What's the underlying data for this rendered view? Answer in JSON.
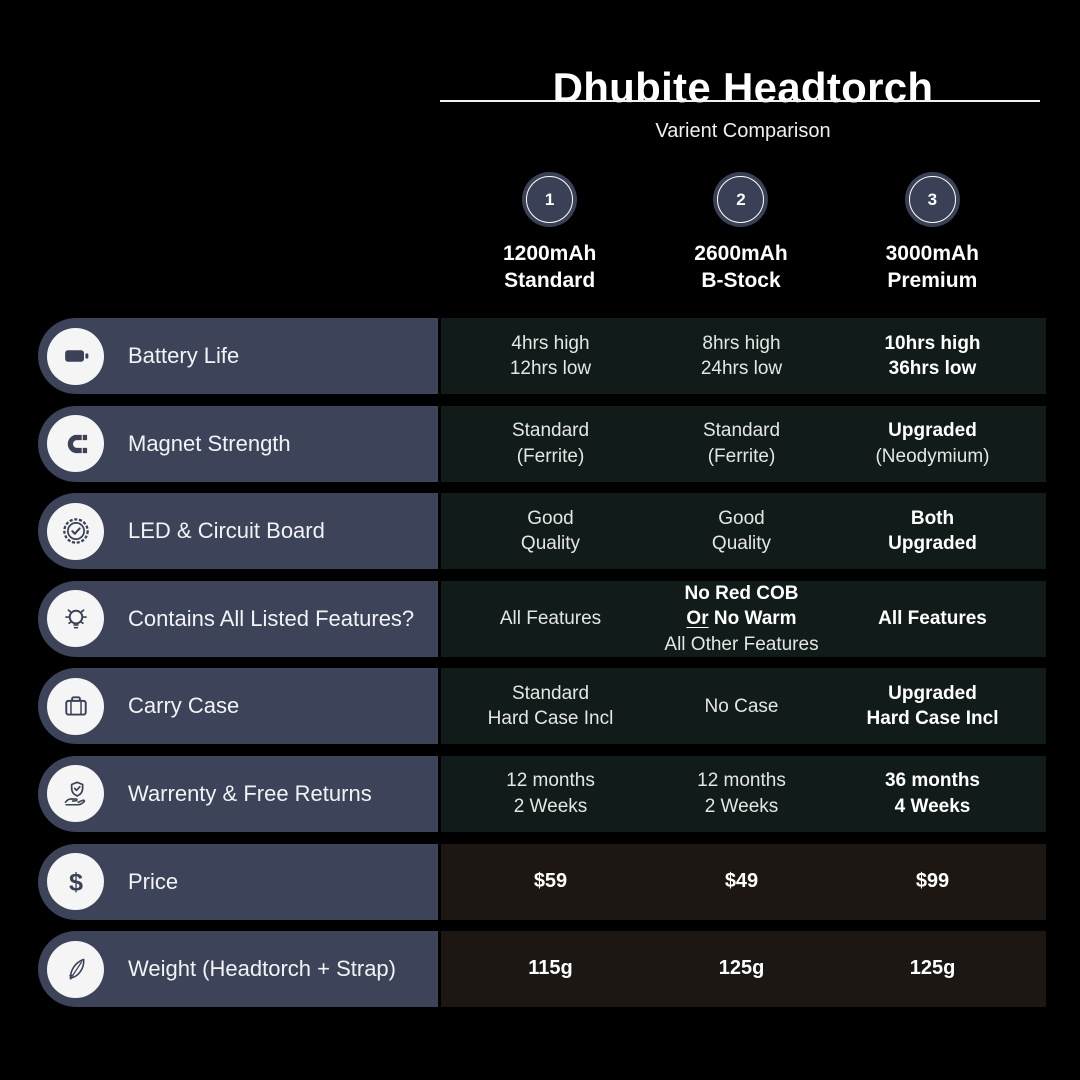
{
  "title": "Dhubite Headtorch",
  "subtitle": "Varient Comparison",
  "columns": [
    {
      "number": "1",
      "line1": "1200mAh",
      "line2": "Standard"
    },
    {
      "number": "2",
      "line1": "2600mAh",
      "line2": "B-Stock"
    },
    {
      "number": "3",
      "line1": "3000mAh",
      "line2": "Premium"
    }
  ],
  "rows": [
    {
      "id": "battery-life",
      "icon": "battery-icon",
      "label": "Battery Life",
      "panel_tone": "cool",
      "cells": [
        {
          "lines": [
            {
              "text": "4hrs high"
            },
            {
              "text": "12hrs low"
            }
          ]
        },
        {
          "lines": [
            {
              "text": "8hrs high"
            },
            {
              "text": "24hrs low"
            }
          ]
        },
        {
          "lines": [
            {
              "text": "10hrs high",
              "bold": true
            },
            {
              "text": "36hrs low",
              "bold": true
            }
          ]
        }
      ]
    },
    {
      "id": "magnet-strength",
      "icon": "magnet-icon",
      "label": "Magnet Strength",
      "panel_tone": "cool",
      "cells": [
        {
          "lines": [
            {
              "text": "Standard"
            },
            {
              "text": "(Ferrite)"
            }
          ]
        },
        {
          "lines": [
            {
              "text": "Standard"
            },
            {
              "text": "(Ferrite)"
            }
          ]
        },
        {
          "lines": [
            {
              "text": "Upgraded",
              "bold": true
            },
            {
              "text": "(Neodymium)"
            }
          ]
        }
      ]
    },
    {
      "id": "led-circuit-board",
      "icon": "quality-badge-icon",
      "label": "LED & Circuit Board",
      "panel_tone": "cool",
      "cells": [
        {
          "lines": [
            {
              "text": "Good"
            },
            {
              "text": "Quality"
            }
          ]
        },
        {
          "lines": [
            {
              "text": "Good"
            },
            {
              "text": "Quality"
            }
          ]
        },
        {
          "lines": [
            {
              "text": "Both",
              "bold": true
            },
            {
              "text": "Upgraded",
              "bold": true
            }
          ]
        }
      ]
    },
    {
      "id": "contains-all-features",
      "icon": "lightbulb-icon",
      "label": "Contains All Listed Features?",
      "panel_tone": "cool",
      "cells": [
        {
          "lines": [
            {
              "text": "All Features"
            }
          ]
        },
        {
          "lines": [
            {
              "text": "No Red COB",
              "bold": true
            },
            {
              "segments": [
                {
                  "text": "Or",
                  "bold": true,
                  "underline": true
                },
                {
                  "text": " No Warm",
                  "bold": true
                }
              ]
            },
            {
              "text": "All Other Features"
            }
          ]
        },
        {
          "lines": [
            {
              "text": "All Features",
              "bold": true
            }
          ]
        }
      ]
    },
    {
      "id": "carry-case",
      "icon": "suitcase-icon",
      "label": "Carry Case",
      "panel_tone": "cool",
      "cells": [
        {
          "lines": [
            {
              "text": "Standard"
            },
            {
              "text": "Hard Case Incl"
            }
          ]
        },
        {
          "lines": [
            {
              "text": "No Case"
            }
          ]
        },
        {
          "lines": [
            {
              "text": "Upgraded",
              "bold": true
            },
            {
              "text": "Hard Case Incl",
              "bold": true
            }
          ]
        }
      ]
    },
    {
      "id": "warranty-returns",
      "icon": "shield-hand-icon",
      "label": "Warrenty & Free Returns",
      "panel_tone": "cool",
      "cells": [
        {
          "lines": [
            {
              "text": "12 months"
            },
            {
              "text": "2 Weeks"
            }
          ]
        },
        {
          "lines": [
            {
              "text": "12 months"
            },
            {
              "text": "2 Weeks"
            }
          ]
        },
        {
          "lines": [
            {
              "text": "36 months",
              "bold": true
            },
            {
              "text": "4 Weeks",
              "bold": true
            }
          ]
        }
      ]
    },
    {
      "id": "price",
      "icon": "dollar-icon",
      "label": "Price",
      "panel_tone": "warm",
      "cells": [
        {
          "lines": [
            {
              "text": "$59",
              "bold": true
            }
          ]
        },
        {
          "lines": [
            {
              "text": "$49",
              "bold": true
            }
          ]
        },
        {
          "lines": [
            {
              "text": "$99",
              "bold": true
            }
          ]
        }
      ]
    },
    {
      "id": "weight",
      "icon": "feather-icon",
      "label": "Weight (Headtorch + Strap)",
      "panel_tone": "warm",
      "cells": [
        {
          "lines": [
            {
              "text": "115g",
              "bold": true
            }
          ]
        },
        {
          "lines": [
            {
              "text": "125g",
              "bold": true
            }
          ]
        },
        {
          "lines": [
            {
              "text": "125g",
              "bold": true
            }
          ]
        }
      ]
    }
  ],
  "colors": {
    "background": "#000000",
    "pill": "#3d4459",
    "icon_circle": "#f5f5f6",
    "icon_glyph": "#3b4156",
    "panel_cool": "#111b19",
    "panel_warm": "#1c1713",
    "header_circle": "#3a4157",
    "text": "#e4e6e5",
    "text_bold": "#ffffff",
    "divider": "#f2f2f2"
  },
  "chart_data": {
    "type": "table",
    "title": "Dhubite Headtorch — Varient Comparison",
    "columns": [
      "Feature",
      "1200mAh Standard",
      "2600mAh B-Stock",
      "3000mAh Premium"
    ],
    "rows": [
      [
        "Battery Life",
        "4hrs high / 12hrs low",
        "8hrs high / 24hrs low",
        "10hrs high / 36hrs low"
      ],
      [
        "Magnet Strength",
        "Standard (Ferrite)",
        "Standard (Ferrite)",
        "Upgraded (Neodymium)"
      ],
      [
        "LED & Circuit Board",
        "Good Quality",
        "Good Quality",
        "Both Upgraded"
      ],
      [
        "Contains All Listed Features?",
        "All Features",
        "No Red COB Or No Warm / All Other Features",
        "All Features"
      ],
      [
        "Carry Case",
        "Standard Hard Case Incl",
        "No Case",
        "Upgraded Hard Case Incl"
      ],
      [
        "Warrenty & Free Returns",
        "12 months / 2 Weeks",
        "12 months / 2 Weeks",
        "36 months / 4 Weeks"
      ],
      [
        "Price",
        "$59",
        "$49",
        "$99"
      ],
      [
        "Weight (Headtorch + Strap)",
        "115g",
        "125g",
        "125g"
      ]
    ]
  }
}
